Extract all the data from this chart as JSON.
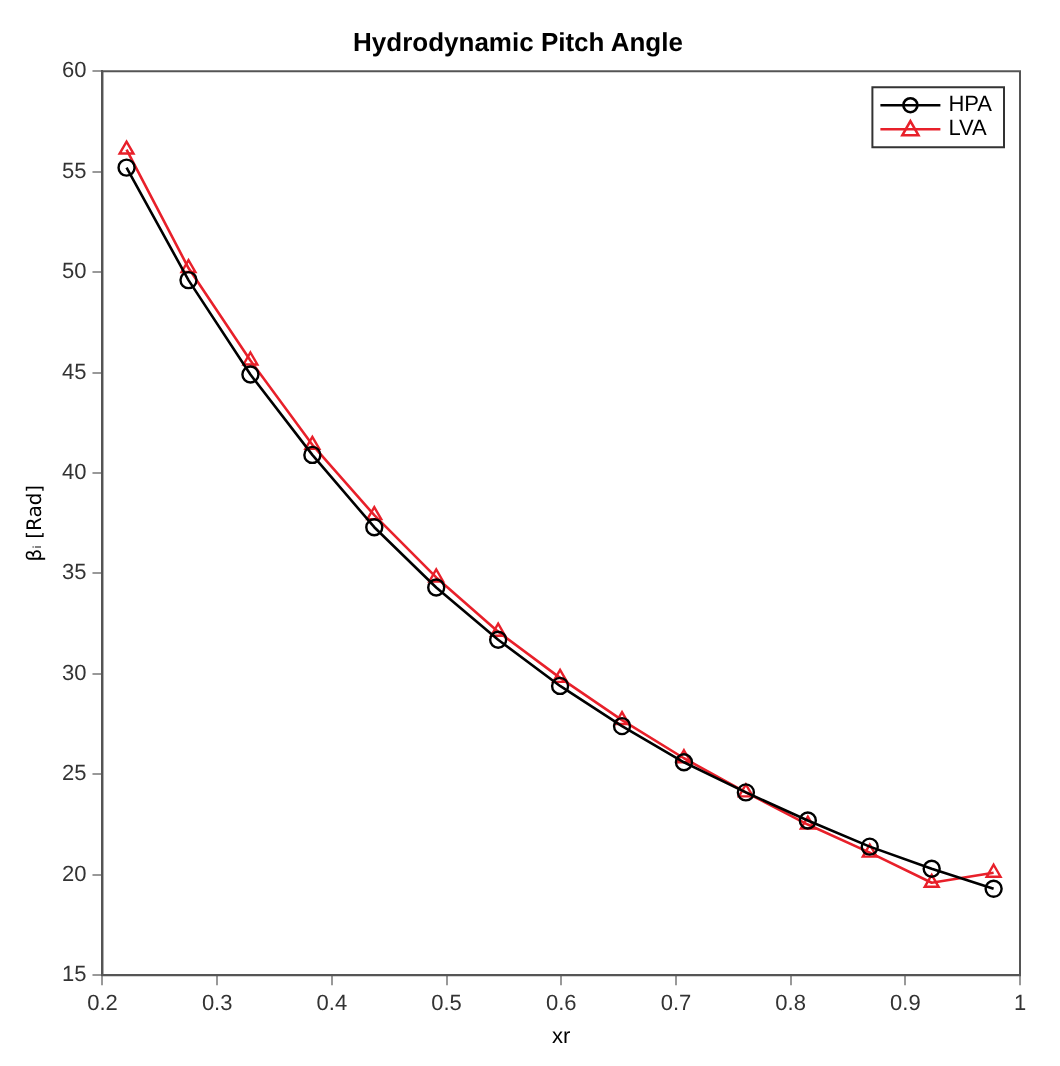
{
  "chart_data": {
    "type": "line",
    "title": "Hydrodynamic Pitch Angle",
    "xlabel": "xr",
    "ylabel": "βᵢ [Rad]",
    "x": [
      0.221,
      0.275,
      0.329,
      0.383,
      0.437,
      0.491,
      0.545,
      0.599,
      0.653,
      0.707,
      0.761,
      0.815,
      0.869,
      0.923,
      0.977
    ],
    "series": [
      {
        "name": "HPA",
        "color": "#000000",
        "marker": "circle",
        "values": [
          55.2,
          49.6,
          44.9,
          40.9,
          37.3,
          34.3,
          31.7,
          29.4,
          27.4,
          25.6,
          24.1,
          22.7,
          21.4,
          20.3,
          19.3
        ]
      },
      {
        "name": "LVA",
        "color": "#e8202a",
        "marker": "triangle",
        "values": [
          56.1,
          50.2,
          45.6,
          41.4,
          37.9,
          34.8,
          32.1,
          29.8,
          27.7,
          25.8,
          24.1,
          22.5,
          21.1,
          19.6,
          20.1
        ]
      }
    ],
    "xlim": [
      0.2,
      1
    ],
    "xticks": [
      0.2,
      0.3,
      0.4,
      0.5,
      0.6,
      0.7,
      0.8,
      0.9,
      1
    ],
    "ylim": [
      15,
      60
    ],
    "yticks": [
      15,
      20,
      25,
      30,
      35,
      40,
      45,
      50,
      55,
      60
    ],
    "grid": false,
    "legend": "top right",
    "line_style": "solid"
  }
}
